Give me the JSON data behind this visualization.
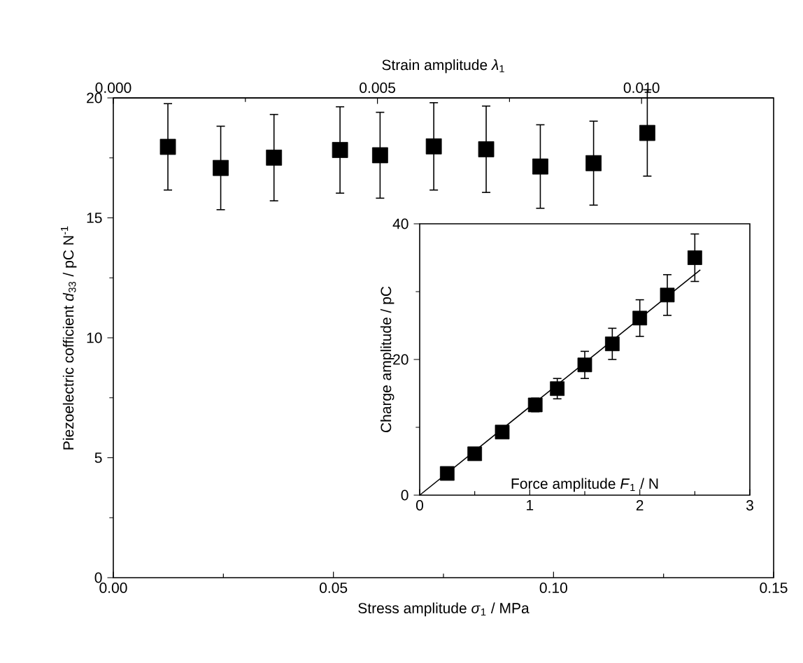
{
  "chart_data": [
    {
      "type": "scatter",
      "xlabel": "Stress amplitude *σ*$_{1}$ / MPa",
      "ylabel": "Piezoelectric cofficient *d*$_{33}$ / pC N$^{-1}$",
      "x2label": "Strain amplitude  *λ*$_{1}$",
      "x": [
        0.0124,
        0.0244,
        0.0365,
        0.0515,
        0.0606,
        0.0728,
        0.0847,
        0.097,
        0.1091,
        0.1213
      ],
      "values": [
        17.96,
        17.08,
        17.51,
        17.83,
        17.61,
        17.98,
        17.86,
        17.14,
        17.28,
        18.54
      ],
      "errors": [
        1.8,
        1.74,
        1.8,
        1.8,
        1.79,
        1.82,
        1.8,
        1.74,
        1.75,
        1.8
      ],
      "color": "#000000",
      "marker": "square",
      "xlim": [
        0,
        0.15
      ],
      "xticks": [
        {
          "value": 0,
          "label": "0.00"
        },
        {
          "value": 0.05,
          "label": "0.05"
        },
        {
          "value": 0.1,
          "label": "0.10"
        },
        {
          "value": 0.15,
          "label": "0.15"
        }
      ],
      "ylim": [
        0,
        20
      ],
      "yticks": [
        0,
        5,
        10,
        15,
        20
      ],
      "x2lim": [
        0,
        0.0125
      ],
      "x2ticks": [
        {
          "value": 0,
          "label": "0.000"
        },
        {
          "value": 0.005,
          "label": "0.005"
        },
        {
          "value": 0.01,
          "label": "0.010"
        }
      ]
    },
    {
      "type": "scatter",
      "xlabel": "Force amplitude *F*$_{1}$ / N",
      "ylabel": "Charge amplitude / pC",
      "series": [
        {
          "type": "scatter",
          "marker": "square",
          "color": "#000000",
          "x": [
            0.25,
            0.5,
            0.75,
            1.05,
            1.25,
            1.5,
            1.75,
            2.0,
            2.25,
            2.5
          ],
          "values": [
            3.2,
            6.1,
            9.3,
            13.3,
            15.7,
            19.2,
            22.3,
            26.1,
            29.5,
            35.0
          ],
          "errors": [
            null,
            null,
            null,
            1.0,
            1.5,
            2.0,
            2.3,
            2.7,
            3.0,
            3.5
          ]
        },
        {
          "type": "line",
          "color": "#000000",
          "x": [
            0,
            2.55
          ],
          "values": [
            0,
            33.2
          ]
        }
      ],
      "xlim": [
        0,
        3
      ],
      "xticks": [
        0,
        1,
        2,
        3
      ],
      "ylim": [
        0,
        40
      ],
      "yticks": [
        0,
        20,
        40
      ]
    }
  ]
}
